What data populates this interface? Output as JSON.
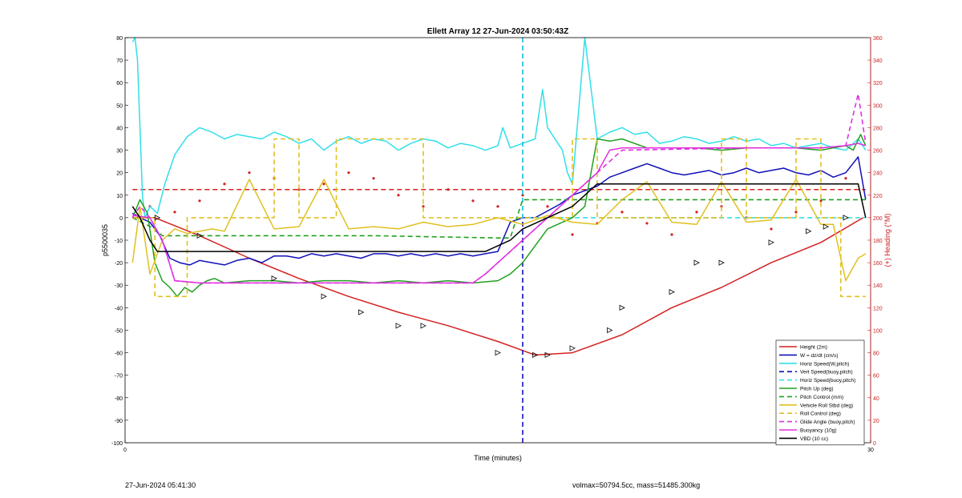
{
  "footer": {
    "timestamp": "27-Jun-2024 05:41:30",
    "mass_info": "volmax=50794.5cc, mass=51485.300kg"
  },
  "chart_data": {
    "type": "line",
    "title": "Ellett Array 12 27-Jun-2024 03:50:43Z",
    "xlabel": "Time (minutes)",
    "ylabel": "p5500035",
    "y2label": "(+) Heading (°M)",
    "xlim": [
      0,
      30
    ],
    "ylim": [
      -100,
      80
    ],
    "y2lim": [
      0,
      360
    ],
    "x_ticks": [
      0,
      30
    ],
    "y_ticks": [
      80,
      70,
      60,
      50,
      40,
      30,
      20,
      10,
      0,
      -10,
      -20,
      -30,
      -40,
      -50,
      -60,
      -70,
      -80,
      -90,
      -100
    ],
    "y2_ticks": [
      360,
      340,
      320,
      300,
      280,
      260,
      240,
      220,
      200,
      180,
      160,
      140,
      120,
      100,
      80,
      60,
      40,
      20,
      0
    ],
    "grid": false,
    "legend_position": "bottom-right",
    "colors": {
      "right_axis": "#cc2020",
      "height": "#d42020",
      "w": "#1010b8",
      "horiz_speed": "#30e0e8",
      "vert_speed": "#1010b8",
      "pitch_up": "#20a020",
      "pitch_control": "#20a020",
      "roll": "#e0c020",
      "glide_angle": "#e030e0",
      "buoyancy": "#e030e0",
      "vbd": "#000000",
      "heading": "#d42020"
    },
    "series": [
      {
        "name": "Height (2m)",
        "style": "solid",
        "color": "#d42020",
        "x": [
          0.3,
          1.2,
          3,
          5,
          7,
          9,
          11,
          13,
          15,
          16.5,
          18,
          20,
          22,
          24,
          26,
          28,
          29.7
        ],
        "y": [
          0,
          0,
          -8,
          -18,
          -27,
          -35,
          -42,
          -48,
          -55,
          -61,
          -60,
          -52,
          -40,
          -31,
          -20,
          -11,
          0
        ]
      },
      {
        "name": "W = dz/dt (cm/s)",
        "style": "solid",
        "color": "#1010b8",
        "x": [
          0.3,
          0.6,
          1.0,
          1.4,
          1.8,
          2.2,
          2.6,
          3,
          3.5,
          4,
          4.5,
          5,
          5.5,
          6,
          6.5,
          7,
          7.5,
          8,
          8.5,
          9,
          9.5,
          10,
          10.5,
          11,
          11.5,
          12,
          12.5,
          13,
          13.5,
          14,
          14.5,
          15,
          15.5,
          16,
          16.5,
          17,
          17.5,
          18,
          18.5,
          19,
          19.5,
          20,
          20.5,
          21,
          21.5,
          22,
          22.5,
          23,
          23.5,
          24,
          24.5,
          25,
          25.5,
          26,
          26.5,
          27,
          27.5,
          28,
          28.5,
          29,
          29.5,
          29.8
        ],
        "y": [
          2,
          0,
          -2,
          -8,
          -18,
          -20,
          -21,
          -19,
          -20,
          -21,
          -19,
          -18,
          -20,
          -17,
          -17,
          -18,
          -16,
          -17,
          -16,
          -17,
          -18,
          -16,
          -16,
          -17,
          -16,
          -17,
          -16,
          -17,
          -16,
          -17,
          -16,
          -15,
          -2,
          0,
          0,
          3,
          6,
          10,
          12,
          14,
          18,
          20,
          22,
          24,
          22,
          20,
          19,
          20,
          21,
          19,
          20,
          22,
          20,
          21,
          22,
          20,
          19,
          21,
          18,
          20,
          27,
          8
        ]
      },
      {
        "name": "Horiz Speed(W,pitch)",
        "style": "solid",
        "color": "#30e0e8",
        "x": [
          0.3,
          0.4,
          0.5,
          0.6,
          0.7,
          0.8,
          1.0,
          1.3,
          1.6,
          2.0,
          2.5,
          3,
          3.5,
          4,
          4.5,
          5,
          5.5,
          6,
          6.5,
          7,
          7.5,
          8,
          8.5,
          9,
          9.5,
          10,
          10.5,
          11,
          11.5,
          12,
          12.5,
          13,
          13.5,
          14,
          14.5,
          15,
          15.2,
          15.5,
          16,
          16.5,
          16.8,
          17,
          17.3,
          17.6,
          17.8,
          18,
          18.5,
          19,
          19.5,
          20,
          20.5,
          21,
          21.5,
          22,
          22.5,
          23,
          23.5,
          24,
          24.5,
          25,
          25.5,
          26,
          26.5,
          27,
          27.5,
          28,
          28.5,
          29,
          29.5,
          29.8
        ],
        "y": [
          78,
          80,
          70,
          40,
          10,
          0,
          5,
          2,
          15,
          28,
          36,
          40,
          38,
          35,
          37,
          36,
          35,
          38,
          36,
          33,
          35,
          30,
          34,
          36,
          33,
          35,
          34,
          30,
          33,
          35,
          34,
          31,
          33,
          32,
          30,
          32,
          40,
          31,
          33,
          35,
          57,
          40,
          35,
          30,
          20,
          15,
          80,
          35,
          38,
          40,
          37,
          38,
          33,
          34,
          36,
          35,
          33,
          34,
          36,
          34,
          35,
          32,
          33,
          31,
          32,
          33,
          31,
          30,
          35,
          30
        ]
      },
      {
        "name": "Vert Speed(buoy,pitch)",
        "style": "dashed",
        "color": "#1010b8",
        "x": [
          16,
          16,
          16,
          16
        ],
        "y": [
          80,
          0,
          -100,
          -100
        ]
      },
      {
        "name": "Horiz Speed(buoy,pitch)",
        "style": "dashed",
        "color": "#30e0e8",
        "x": [
          16,
          16,
          16,
          29.8
        ],
        "y": [
          80,
          0,
          0,
          0
        ]
      },
      {
        "name": "Pitch Up (deg)",
        "style": "solid",
        "color": "#20a020",
        "x": [
          0.3,
          0.6,
          0.9,
          1.2,
          1.5,
          1.8,
          2.1,
          2.4,
          2.7,
          3,
          3.3,
          3.6,
          4,
          5,
          6,
          7,
          8,
          9,
          10,
          11,
          12,
          13,
          14,
          15,
          15.5,
          16,
          17,
          18,
          18.5,
          19,
          19.5,
          20,
          21,
          22,
          23,
          24,
          25,
          26,
          27,
          28,
          28.5,
          29,
          29.3,
          29.6,
          29.8
        ],
        "y": [
          0,
          8,
          2,
          -20,
          -28,
          -31,
          -35,
          -31,
          -33,
          -30,
          -28,
          -27,
          -29,
          -28,
          -28,
          -29,
          -28,
          -28,
          -29,
          -28,
          -29,
          -28,
          -29,
          -28,
          -25,
          -20,
          -5,
          0,
          5,
          35,
          34,
          35,
          31,
          31,
          31,
          30,
          31,
          31,
          31,
          30,
          31,
          32,
          30,
          37,
          32
        ]
      },
      {
        "name": "Pitch Control (mm)",
        "style": "dashed",
        "color": "#20a020",
        "x": [
          0.3,
          1.2,
          1.5,
          5,
          10,
          15,
          15.5,
          16,
          20,
          25,
          29.8
        ],
        "y": [
          0,
          -5,
          -8,
          -8,
          -8,
          -9,
          -9,
          8,
          8,
          8,
          8
        ]
      },
      {
        "name": "Vehicle Roll Stbd (deg)",
        "style": "solid",
        "color": "#e0c020",
        "x": [
          0.3,
          0.6,
          1,
          1.5,
          2,
          2.5,
          3,
          3.5,
          4,
          5,
          6,
          7,
          8,
          9,
          10,
          11,
          12,
          13,
          14,
          15,
          16,
          17,
          18,
          19,
          20,
          21,
          22,
          23,
          24,
          25,
          26,
          27,
          28,
          28.5,
          29,
          29.5,
          29.8
        ],
        "y": [
          -20,
          5,
          -25,
          -10,
          -5,
          -7,
          -6,
          -5,
          -6,
          17,
          -5,
          -4,
          17,
          -5,
          -4,
          -5,
          -2,
          -4,
          -3,
          0,
          -3,
          1,
          -2,
          -3,
          8,
          16,
          -2,
          -3,
          16,
          -2,
          -1,
          17,
          -3,
          -3,
          -28,
          -18,
          -16
        ]
      },
      {
        "name": "Roll Control (deg)",
        "style": "dashed",
        "color": "#e0c020",
        "x": [
          0.3,
          1.2,
          1.2,
          2.5,
          2.5,
          3,
          3,
          6,
          6,
          7,
          7,
          8.5,
          8.5,
          12,
          12,
          15,
          15,
          16,
          16,
          18,
          18,
          19,
          19,
          20,
          20,
          24,
          24,
          25,
          25,
          27,
          27,
          28,
          28,
          28.8,
          28.8,
          29.8
        ],
        "y": [
          0,
          0,
          -35,
          -35,
          0,
          0,
          0,
          0,
          35,
          35,
          0,
          0,
          35,
          35,
          0,
          0,
          0,
          0,
          0,
          0,
          35,
          35,
          0,
          0,
          0,
          0,
          35,
          35,
          0,
          0,
          35,
          35,
          0,
          0,
          -35,
          -35
        ]
      },
      {
        "name": "Glide Angle (buoy,pitch)",
        "style": "dashed",
        "color": "#e030e0",
        "x": [
          0.3,
          0.6,
          1.0,
          1.5,
          2,
          3,
          5,
          10,
          14,
          14.5,
          15,
          16,
          17,
          18,
          19,
          20,
          25,
          28,
          29,
          29.5,
          29.8
        ],
        "y": [
          0,
          5,
          0,
          -10,
          -28,
          -29,
          -29,
          -29,
          -29,
          -25,
          -20,
          -10,
          0,
          10,
          20,
          30,
          31,
          31,
          32,
          55,
          33
        ]
      },
      {
        "name": "Buoyancy (10g)",
        "style": "solid",
        "color": "#e030e0",
        "x": [
          0.3,
          1,
          1.5,
          2,
          3,
          5,
          10,
          14,
          14.5,
          15,
          16,
          17,
          18,
          19,
          19.5,
          20,
          25,
          28,
          29,
          29.5,
          29.8
        ],
        "y": [
          1,
          0,
          -10,
          -28,
          -29,
          -29,
          -29,
          -29,
          -25,
          -20,
          -10,
          0,
          10,
          20,
          30,
          31,
          31,
          31,
          32,
          33,
          32
        ]
      },
      {
        "name": "VBD (10 cc)",
        "style": "solid",
        "color": "#000000",
        "x": [
          0.3,
          0.6,
          1.0,
          1.3,
          1.6,
          2,
          5,
          10,
          12,
          14,
          14.5,
          15.5,
          16,
          17,
          18,
          18.5,
          19,
          19.5,
          20,
          25,
          29,
          29.5,
          29.8
        ],
        "y": [
          5,
          0,
          -10,
          -15,
          -15,
          -15,
          -15,
          -15,
          -15,
          -15,
          -15,
          -10,
          -5,
          0,
          5,
          10,
          15,
          15,
          15,
          15,
          15,
          15,
          0
        ]
      }
    ],
    "heading_series": {
      "name": "Heading",
      "style": "dotted",
      "axis": "right",
      "color": "#d42020",
      "x": [
        1,
        2,
        3,
        4,
        5,
        6,
        7,
        8,
        9,
        10,
        11,
        12,
        13,
        14,
        15,
        16,
        17,
        18,
        19,
        20,
        21,
        22,
        23,
        24,
        25,
        26,
        27,
        28,
        29
      ],
      "y": [
        210,
        205,
        215,
        230,
        240,
        235,
        225,
        230,
        240,
        235,
        220,
        210,
        225,
        215,
        210,
        220,
        210,
        185,
        195,
        205,
        195,
        185,
        205,
        210,
        200,
        190,
        205,
        215,
        235
      ]
    },
    "heading_ref": {
      "style": "dashed",
      "axis": "right",
      "color": "#d42020",
      "y": 225
    },
    "triangle_markers": {
      "x": [
        1.3,
        3,
        6,
        8,
        9.5,
        11,
        12,
        15,
        16.5,
        17,
        18,
        19.5,
        20,
        22,
        23,
        24,
        26,
        27.5,
        28.2,
        29
      ],
      "y": [
        0,
        -8,
        -27,
        -35,
        -42,
        -48,
        -48,
        -60,
        -61,
        -61,
        -58,
        -50,
        -40,
        -33,
        -20,
        -20,
        -11,
        -6,
        -4,
        0
      ]
    }
  }
}
